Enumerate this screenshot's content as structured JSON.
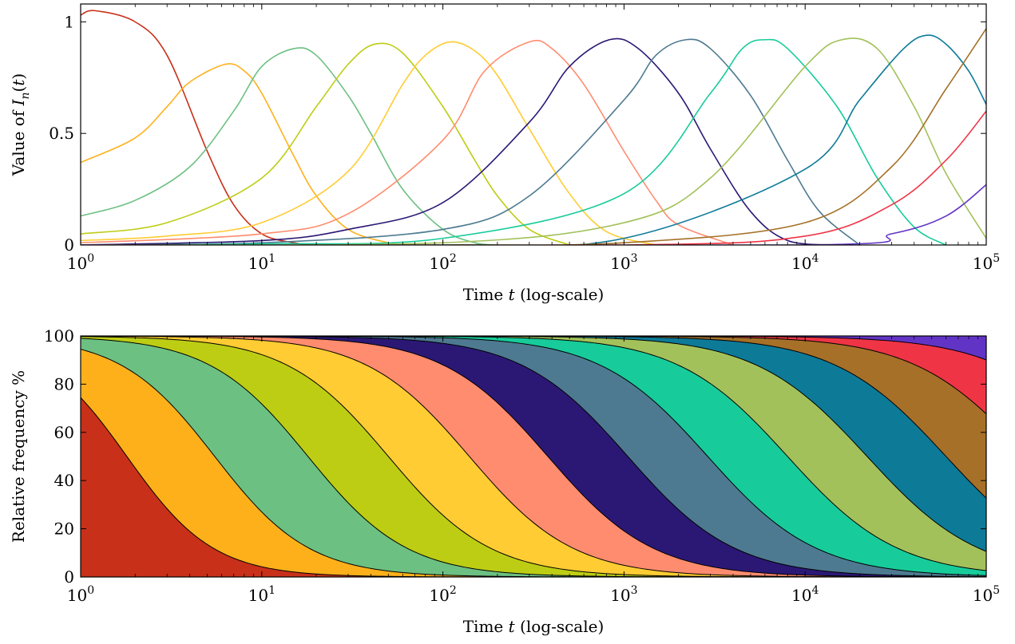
{
  "chart_data": [
    {
      "type": "line",
      "xscale": "log",
      "xlim": [
        1,
        100000
      ],
      "ylim": [
        0,
        1.08
      ],
      "xlabel": "Time t (log-scale)",
      "ylabel": "Value of I_n(t)",
      "xticks": [
        1,
        10,
        100,
        1000,
        10000,
        100000
      ],
      "yticks": [
        0,
        0.5,
        1
      ],
      "ytick_labels": [
        "0",
        "0.5",
        "1"
      ],
      "grid": false,
      "series": [
        {
          "color": "#c8301a",
          "x": [
            1,
            1.2,
            2,
            3,
            5,
            7,
            10,
            15,
            20
          ],
          "y": [
            1.03,
            1.05,
            1.0,
            0.85,
            0.42,
            0.18,
            0.05,
            0.01,
            0.0
          ]
        },
        {
          "color": "#feb01b",
          "x": [
            1,
            2,
            3,
            4,
            6.3,
            8,
            10,
            15,
            20,
            30,
            50,
            70
          ],
          "y": [
            0.37,
            0.48,
            0.62,
            0.73,
            0.81,
            0.78,
            0.68,
            0.4,
            0.22,
            0.07,
            0.01,
            0.0
          ]
        },
        {
          "color": "#6cc082",
          "x": [
            1,
            2,
            4,
            7,
            10,
            15,
            20,
            30,
            40,
            60,
            100,
            150,
            200
          ],
          "y": [
            0.13,
            0.2,
            0.35,
            0.6,
            0.8,
            0.88,
            0.85,
            0.67,
            0.5,
            0.25,
            0.07,
            0.01,
            0.0
          ]
        },
        {
          "color": "#bdcd14",
          "x": [
            1,
            3,
            10,
            20,
            30,
            42,
            60,
            100,
            150,
            200,
            300,
            500
          ],
          "y": [
            0.05,
            0.1,
            0.3,
            0.62,
            0.81,
            0.9,
            0.86,
            0.62,
            0.38,
            0.22,
            0.07,
            0.0
          ]
        },
        {
          "color": "#ffcc33",
          "x": [
            1,
            3,
            10,
            30,
            60,
            80,
            110,
            150,
            200,
            300,
            500,
            800,
            1500
          ],
          "y": [
            0.02,
            0.04,
            0.1,
            0.33,
            0.72,
            0.85,
            0.91,
            0.87,
            0.76,
            0.52,
            0.23,
            0.06,
            0.0
          ]
        },
        {
          "color": "#ff8c6e",
          "x": [
            1,
            10,
            30,
            100,
            170,
            300,
            400,
            600,
            1000,
            1500,
            2000,
            4000
          ],
          "y": [
            0.01,
            0.05,
            0.14,
            0.47,
            0.78,
            0.91,
            0.88,
            0.72,
            0.42,
            0.2,
            0.09,
            0.0
          ]
        },
        {
          "color": "#2b1875",
          "x": [
            1,
            10,
            30,
            100,
            300,
            500,
            830,
            1200,
            2000,
            3000,
            5000,
            8000,
            15000
          ],
          "y": [
            0.0,
            0.02,
            0.07,
            0.19,
            0.55,
            0.8,
            0.92,
            0.88,
            0.68,
            0.43,
            0.15,
            0.02,
            0.0
          ]
        },
        {
          "color": "#4d7a90",
          "x": [
            1,
            10,
            100,
            300,
            1000,
            1500,
            2200,
            3000,
            5000,
            8000,
            12000,
            20000
          ],
          "y": [
            0.0,
            0.01,
            0.07,
            0.22,
            0.65,
            0.85,
            0.92,
            0.88,
            0.67,
            0.38,
            0.15,
            0.0
          ]
        },
        {
          "color": "#17cc9a",
          "x": [
            1,
            10,
            100,
            1000,
            3000,
            4500,
            6000,
            8000,
            15000,
            25000,
            40000,
            60000
          ],
          "y": [
            0.0,
            0.005,
            0.03,
            0.23,
            0.68,
            0.88,
            0.92,
            0.88,
            0.62,
            0.3,
            0.08,
            0.0
          ]
        },
        {
          "color": "#a3c15a",
          "x": [
            1,
            100,
            1000,
            3000,
            10000,
            16000,
            25000,
            40000,
            60000,
            100000
          ],
          "y": [
            0.0,
            0.01,
            0.1,
            0.3,
            0.8,
            0.92,
            0.88,
            0.62,
            0.32,
            0.03
          ]
        },
        {
          "color": "#0d7a98",
          "x": [
            1,
            100,
            1000,
            10000,
            20000,
            35000,
            47000,
            60000,
            80000,
            100000
          ],
          "y": [
            0.0,
            0.0,
            0.03,
            0.34,
            0.65,
            0.88,
            0.94,
            0.9,
            0.78,
            0.63
          ]
        },
        {
          "color": "#a67028",
          "x": [
            1,
            100,
            1000,
            10000,
            30000,
            60000,
            100000
          ],
          "y": [
            0.0,
            0.0,
            0.01,
            0.1,
            0.35,
            0.7,
            0.97
          ]
        },
        {
          "color": "#ef3446",
          "x": [
            1,
            1000,
            10000,
            30000,
            60000,
            100000
          ],
          "y": [
            0.0,
            0.0,
            0.04,
            0.18,
            0.38,
            0.6
          ]
        },
        {
          "color": "#6234c6",
          "x": [
            1,
            10000,
            30000,
            60000,
            100000
          ],
          "y": [
            0.0,
            0.0,
            0.05,
            0.13,
            0.27
          ]
        }
      ]
    },
    {
      "type": "area",
      "stacked": true,
      "xscale": "log",
      "xlim": [
        1,
        100000
      ],
      "ylim": [
        0,
        100
      ],
      "xlabel": "Time t (log-scale)",
      "ylabel": "Relative frequency %",
      "xticks": [
        1,
        10,
        100,
        1000,
        10000,
        100000
      ],
      "yticks": [
        0,
        20,
        40,
        60,
        80,
        100
      ],
      "grid": false,
      "x": [
        1,
        100000
      ],
      "boundaries": [
        {
          "x0": 1.8,
          "w": 0.55,
          "lo": 0,
          "hi": 100,
          "clip": 100
        },
        {
          "x0": 5.5,
          "w": 0.6,
          "lo": 0,
          "hi": 100,
          "clip": 100
        },
        {
          "x0": 18,
          "w": 0.63,
          "lo": 0,
          "hi": 100,
          "clip": 100
        },
        {
          "x0": 50,
          "w": 0.65,
          "lo": 0,
          "hi": 100,
          "clip": 100
        },
        {
          "x0": 140,
          "w": 0.66,
          "lo": 0,
          "hi": 100,
          "clip": 100
        },
        {
          "x0": 380,
          "w": 0.67,
          "lo": 0,
          "hi": 100,
          "clip": 100
        },
        {
          "x0": 1050,
          "w": 0.68,
          "lo": 0,
          "hi": 100,
          "clip": 100
        },
        {
          "x0": 2900,
          "w": 0.69,
          "lo": 0,
          "hi": 100,
          "clip": 100
        },
        {
          "x0": 8000,
          "w": 0.7,
          "lo": 0,
          "hi": 100,
          "clip": 100
        },
        {
          "x0": 22000,
          "w": 0.71,
          "lo": 0,
          "hi": 100,
          "clip": 100
        },
        {
          "x0": 60000,
          "w": 0.71,
          "lo": 0,
          "hi": 100,
          "clip": 100
        },
        {
          "x0": 170000,
          "w": 0.72,
          "lo": 0,
          "hi": 100,
          "clip": 100
        },
        {
          "x0": 500000,
          "w": 0.73,
          "lo": 0,
          "hi": 100,
          "clip": 100
        }
      ],
      "colors": [
        "#c8301a",
        "#feb01b",
        "#6cc082",
        "#bdcd14",
        "#ffcc33",
        "#ff8c6e",
        "#2b1875",
        "#4d7a90",
        "#17cc9a",
        "#a3c15a",
        "#0d7a98",
        "#a67028",
        "#ef3446",
        "#6234c6"
      ]
    }
  ]
}
